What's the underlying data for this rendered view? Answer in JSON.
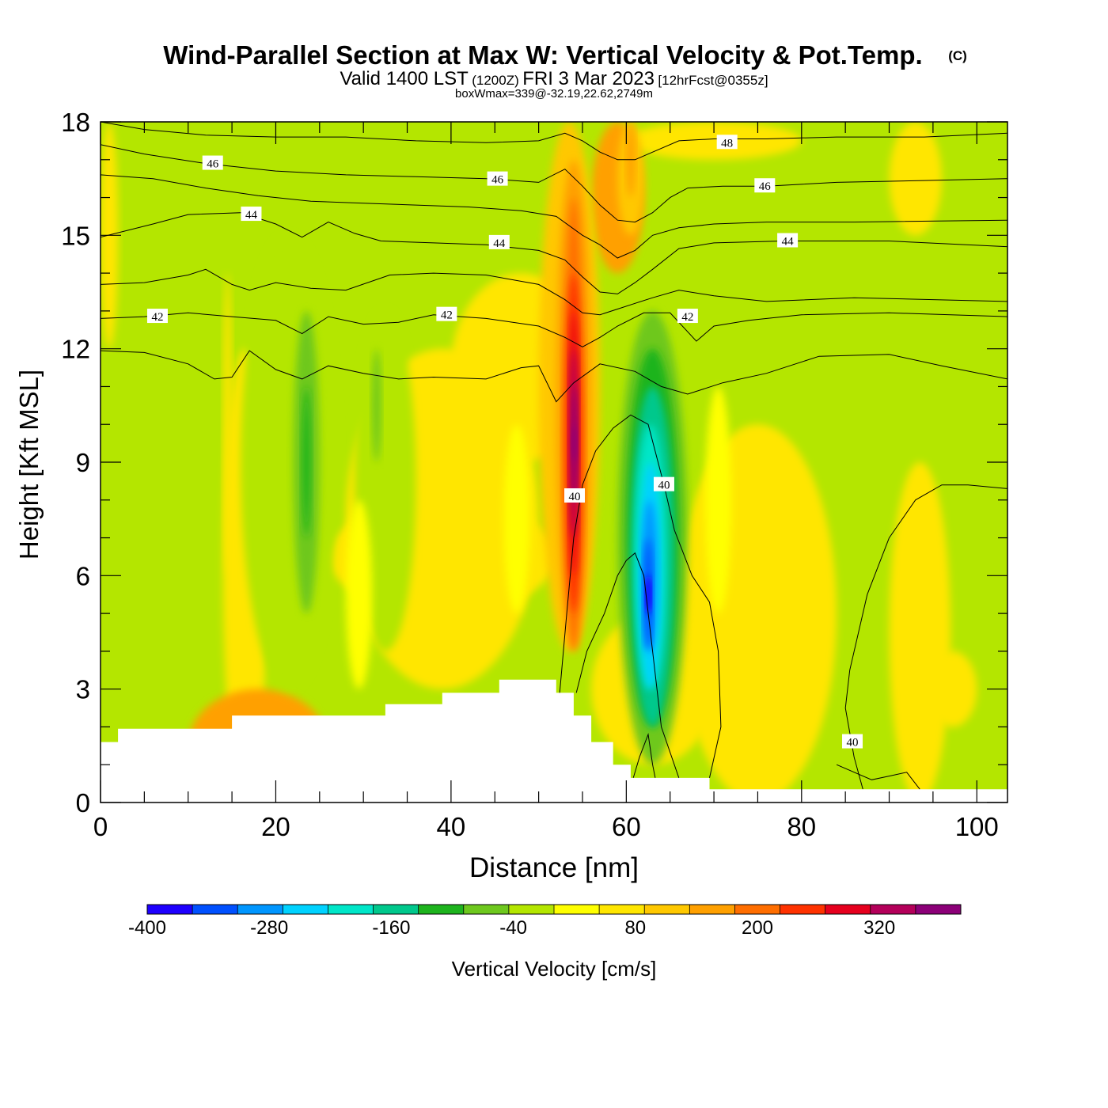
{
  "header": {
    "title": "Wind-Parallel Section at Max W: Vertical Velocity & Pot.Temp.",
    "copyright": "(C)",
    "valid_prefix": "Valid 1400 LST",
    "valid_utc": "(1200Z)",
    "valid_date": "FRI 3 Mar 2023",
    "forecast": "[12hrFcst@0355z]",
    "boxwmax": "boxWmax=339@-32.19,22.62,2749m"
  },
  "chart_data": {
    "type": "heatmap",
    "xlabel": "Distance [nm]",
    "ylabel": "Height [Kft MSL]",
    "xlim": [
      0,
      103.5
    ],
    "ylim": [
      0,
      18
    ],
    "xticks": [
      0,
      20,
      40,
      60,
      80,
      100
    ],
    "yticks": [
      0,
      3,
      6,
      9,
      12,
      15,
      18
    ],
    "colorbar": {
      "label": "Vertical Velocity [cm/s]",
      "min": -400,
      "max": 400,
      "step": 40,
      "tick_labels": [
        "-400",
        "-280",
        "-160",
        "-40",
        "80",
        "200",
        "320"
      ],
      "colors": [
        "#1e00ff",
        "#0050ff",
        "#0096ff",
        "#00d2ff",
        "#00e6c8",
        "#00c88c",
        "#1eb41e",
        "#6ec81e",
        "#b4e600",
        "#ffff00",
        "#ffe600",
        "#ffc800",
        "#ffa000",
        "#ff6e00",
        "#ff3200",
        "#e6001e",
        "#b4005a",
        "#8c0078"
      ]
    },
    "terrain": [
      [
        0,
        1.6
      ],
      [
        2,
        1.6
      ],
      [
        2,
        1.95
      ],
      [
        15,
        1.95
      ],
      [
        15,
        2.3
      ],
      [
        32.5,
        2.3
      ],
      [
        32.5,
        2.6
      ],
      [
        39,
        2.6
      ],
      [
        39,
        2.9
      ],
      [
        45.5,
        2.9
      ],
      [
        45.5,
        3.25
      ],
      [
        52,
        3.25
      ],
      [
        52,
        2.9
      ],
      [
        54,
        2.9
      ],
      [
        54,
        2.3
      ],
      [
        56,
        2.3
      ],
      [
        56,
        1.6
      ],
      [
        58.5,
        1.6
      ],
      [
        58.5,
        1.0
      ],
      [
        60.5,
        1.0
      ],
      [
        60.5,
        0.65
      ],
      [
        69.5,
        0.65
      ],
      [
        69.5,
        0.35
      ],
      [
        103.5,
        0.35
      ]
    ],
    "contour_labels": [
      {
        "text": "48",
        "x": 71.5,
        "y": 17.45
      },
      {
        "text": "46",
        "x": 12.8,
        "y": 16.9
      },
      {
        "text": "46",
        "x": 45.3,
        "y": 16.48
      },
      {
        "text": "46",
        "x": 75.8,
        "y": 16.3
      },
      {
        "text": "44",
        "x": 17.2,
        "y": 15.55
      },
      {
        "text": "44",
        "x": 45.5,
        "y": 14.8
      },
      {
        "text": "44",
        "x": 78.4,
        "y": 14.85
      },
      {
        "text": "42",
        "x": 6.5,
        "y": 12.85
      },
      {
        "text": "42",
        "x": 39.5,
        "y": 12.9
      },
      {
        "text": "42",
        "x": 67.0,
        "y": 12.85
      },
      {
        "text": "40",
        "x": 54.1,
        "y": 8.1
      },
      {
        "text": "40",
        "x": 64.3,
        "y": 8.4
      },
      {
        "text": "40",
        "x": 85.8,
        "y": 1.6
      }
    ],
    "isentropes": [
      [
        [
          0,
          18
        ],
        [
          5,
          17.8
        ],
        [
          12,
          17.65
        ],
        [
          20,
          17.6
        ],
        [
          28,
          17.6
        ],
        [
          36,
          17.5
        ],
        [
          44,
          17.45
        ],
        [
          50,
          17.5
        ],
        [
          53,
          17.7
        ],
        [
          55,
          17.5
        ],
        [
          57,
          17.2
        ],
        [
          59,
          17.0
        ],
        [
          61,
          17.0
        ],
        [
          63,
          17.2
        ],
        [
          66,
          17.5
        ],
        [
          70,
          17.55
        ],
        [
          76,
          17.55
        ],
        [
          84,
          17.6
        ],
        [
          94,
          17.6
        ],
        [
          103.5,
          17.7
        ]
      ],
      [
        [
          0,
          17.4
        ],
        [
          5,
          17.15
        ],
        [
          12,
          16.9
        ],
        [
          20,
          16.7
        ],
        [
          28,
          16.6
        ],
        [
          36,
          16.55
        ],
        [
          44,
          16.5
        ],
        [
          50,
          16.4
        ],
        [
          53,
          16.75
        ],
        [
          55,
          16.3
        ],
        [
          57,
          15.8
        ],
        [
          59,
          15.4
        ],
        [
          61,
          15.35
        ],
        [
          63,
          15.6
        ],
        [
          65,
          16.0
        ],
        [
          67,
          16.25
        ],
        [
          71,
          16.3
        ],
        [
          76,
          16.3
        ],
        [
          84,
          16.4
        ],
        [
          94,
          16.45
        ],
        [
          103.5,
          16.5
        ]
      ],
      [
        [
          0,
          16.6
        ],
        [
          6,
          16.5
        ],
        [
          12,
          16.25
        ],
        [
          18,
          16.05
        ],
        [
          24,
          15.9
        ],
        [
          30,
          15.85
        ],
        [
          36,
          15.8
        ],
        [
          42,
          15.75
        ],
        [
          48,
          15.65
        ],
        [
          52,
          15.5
        ],
        [
          55,
          15.0
        ],
        [
          57,
          14.75
        ],
        [
          59,
          14.4
        ],
        [
          61,
          14.6
        ],
        [
          63,
          15.0
        ],
        [
          66,
          15.2
        ],
        [
          70,
          15.3
        ],
        [
          76,
          15.35
        ],
        [
          86,
          15.35
        ],
        [
          103.5,
          15.4
        ]
      ],
      [
        [
          0,
          14.95
        ],
        [
          6,
          15.3
        ],
        [
          10,
          15.55
        ],
        [
          16,
          15.6
        ],
        [
          20,
          15.3
        ],
        [
          23,
          14.95
        ],
        [
          26,
          15.35
        ],
        [
          29,
          15.05
        ],
        [
          32,
          14.85
        ],
        [
          38,
          14.8
        ],
        [
          44,
          14.75
        ],
        [
          50,
          14.6
        ],
        [
          53,
          14.35
        ],
        [
          55,
          13.9
        ],
        [
          57,
          13.5
        ],
        [
          59,
          13.45
        ],
        [
          61,
          13.75
        ],
        [
          63,
          14.1
        ],
        [
          66,
          14.65
        ],
        [
          70,
          14.8
        ],
        [
          78,
          14.85
        ],
        [
          90,
          14.85
        ],
        [
          103.5,
          14.7
        ]
      ],
      [
        [
          0,
          13.7
        ],
        [
          5,
          13.75
        ],
        [
          10,
          13.95
        ],
        [
          12,
          14.1
        ],
        [
          15,
          13.7
        ],
        [
          17,
          13.55
        ],
        [
          20,
          13.75
        ],
        [
          24,
          13.6
        ],
        [
          28,
          13.55
        ],
        [
          33,
          13.95
        ],
        [
          38,
          14.0
        ],
        [
          44,
          13.95
        ],
        [
          50,
          13.7
        ],
        [
          53,
          13.3
        ],
        [
          55,
          12.95
        ],
        [
          57,
          12.9
        ],
        [
          59,
          13.05
        ],
        [
          61,
          13.2
        ],
        [
          63,
          13.35
        ],
        [
          66,
          13.55
        ],
        [
          70,
          13.4
        ],
        [
          76,
          13.25
        ],
        [
          86,
          13.35
        ],
        [
          103.5,
          13.25
        ]
      ],
      [
        [
          0,
          12.8
        ],
        [
          5,
          12.85
        ],
        [
          10,
          12.95
        ],
        [
          15,
          12.85
        ],
        [
          20,
          12.75
        ],
        [
          23,
          12.4
        ],
        [
          26,
          12.85
        ],
        [
          30,
          12.65
        ],
        [
          34,
          12.7
        ],
        [
          38,
          12.9
        ],
        [
          44,
          12.8
        ],
        [
          50,
          12.6
        ],
        [
          53,
          12.3
        ],
        [
          55,
          12.05
        ],
        [
          57,
          12.3
        ],
        [
          59,
          12.6
        ],
        [
          62,
          12.95
        ],
        [
          65,
          12.95
        ],
        [
          68,
          12.2
        ],
        [
          70,
          12.6
        ],
        [
          74,
          12.75
        ],
        [
          80,
          12.9
        ],
        [
          90,
          12.95
        ],
        [
          103.5,
          12.85
        ]
      ],
      [
        [
          0,
          11.95
        ],
        [
          5,
          11.9
        ],
        [
          10,
          11.6
        ],
        [
          13,
          11.2
        ],
        [
          15,
          11.25
        ],
        [
          17,
          11.95
        ],
        [
          20,
          11.45
        ],
        [
          23,
          11.2
        ],
        [
          26,
          11.55
        ],
        [
          30,
          11.35
        ],
        [
          34,
          11.2
        ],
        [
          38,
          11.25
        ],
        [
          44,
          11.2
        ],
        [
          48,
          11.5
        ],
        [
          50,
          11.55
        ],
        [
          52,
          10.6
        ],
        [
          54,
          11.1
        ],
        [
          57,
          11.6
        ],
        [
          61,
          11.4
        ],
        [
          64,
          11.0
        ],
        [
          67,
          10.8
        ],
        [
          71,
          11.1
        ],
        [
          76,
          11.35
        ],
        [
          82,
          11.8
        ],
        [
          90,
          11.85
        ],
        [
          96,
          11.55
        ],
        [
          103.5,
          11.2
        ]
      ]
    ],
    "theta40_contours": [
      [
        [
          52.4,
          2.9
        ],
        [
          53.2,
          5.0
        ],
        [
          54.0,
          7.0
        ],
        [
          55.0,
          8.4
        ],
        [
          56.5,
          9.3
        ],
        [
          58.5,
          9.9
        ],
        [
          60.5,
          10.25
        ],
        [
          62.5,
          10.0
        ],
        [
          64.3,
          8.4
        ],
        [
          65.5,
          7.2
        ],
        [
          67.5,
          6.0
        ],
        [
          69.5,
          5.3
        ],
        [
          70.5,
          4.0
        ],
        [
          70.8,
          2.0
        ],
        [
          69.5,
          0.65
        ]
      ],
      [
        [
          54.3,
          2.9
        ],
        [
          55.5,
          4.0
        ],
        [
          57.5,
          5.0
        ],
        [
          59.0,
          6.0
        ],
        [
          60.0,
          6.4
        ],
        [
          61.0,
          6.6
        ],
        [
          62.0,
          6.0
        ],
        [
          63.0,
          4.0
        ],
        [
          64.0,
          2.0
        ],
        [
          66.0,
          0.65
        ]
      ],
      [
        [
          60.8,
          0.65
        ],
        [
          61.5,
          1.2
        ],
        [
          62.5,
          1.8
        ],
        [
          63.0,
          1.0
        ],
        [
          63.3,
          0.65
        ]
      ],
      [
        [
          87.0,
          0.35
        ],
        [
          86.0,
          1.2
        ],
        [
          85.0,
          2.5
        ],
        [
          85.5,
          3.5
        ],
        [
          87.5,
          5.5
        ],
        [
          90.0,
          7.0
        ],
        [
          93.0,
          8.0
        ],
        [
          96.0,
          8.4
        ],
        [
          99.0,
          8.4
        ],
        [
          103.5,
          8.3
        ]
      ],
      [
        [
          84.0,
          1.0
        ],
        [
          88.0,
          0.6
        ],
        [
          90.0,
          0.7
        ],
        [
          92.0,
          0.8
        ],
        [
          93.5,
          0.35
        ]
      ]
    ]
  }
}
